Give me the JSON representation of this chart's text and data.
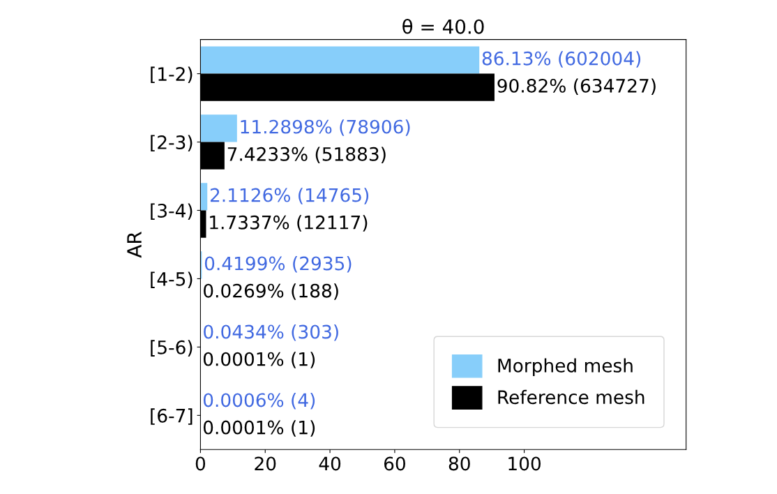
{
  "chart_data": {
    "type": "bar",
    "orientation": "horizontal",
    "title": "θ = 40.0",
    "ylabel": "AR",
    "categories": [
      "[1-2)",
      "[2-3)",
      "[3-4)",
      "[4-5)",
      "[5-6)",
      "[6-7]"
    ],
    "series": [
      {
        "name": "Morphed mesh",
        "color": "#87cefa",
        "values": [
          86.13,
          11.2898,
          2.1126,
          0.4199,
          0.0434,
          0.0006
        ],
        "value_labels": [
          "86.13% (602004)",
          "11.2898% (78906)",
          "2.1126% (14765)",
          "0.4199% (2935)",
          "0.0434% (303)",
          "0.0006% (4)"
        ]
      },
      {
        "name": "Reference mesh",
        "color": "#000000",
        "values": [
          90.82,
          7.4233,
          1.7337,
          0.0269,
          0.0001,
          0.0001
        ],
        "value_labels": [
          "90.82% (634727)",
          "7.4233% (51883)",
          "1.7337% (12117)",
          "0.0269% (188)",
          "0.0001% (1)",
          "0.0001% (1)"
        ]
      }
    ],
    "xlim": [
      0,
      150
    ],
    "xticks": [
      0,
      20,
      40,
      60,
      80,
      100
    ],
    "legend": "bottom right",
    "grid": false
  }
}
